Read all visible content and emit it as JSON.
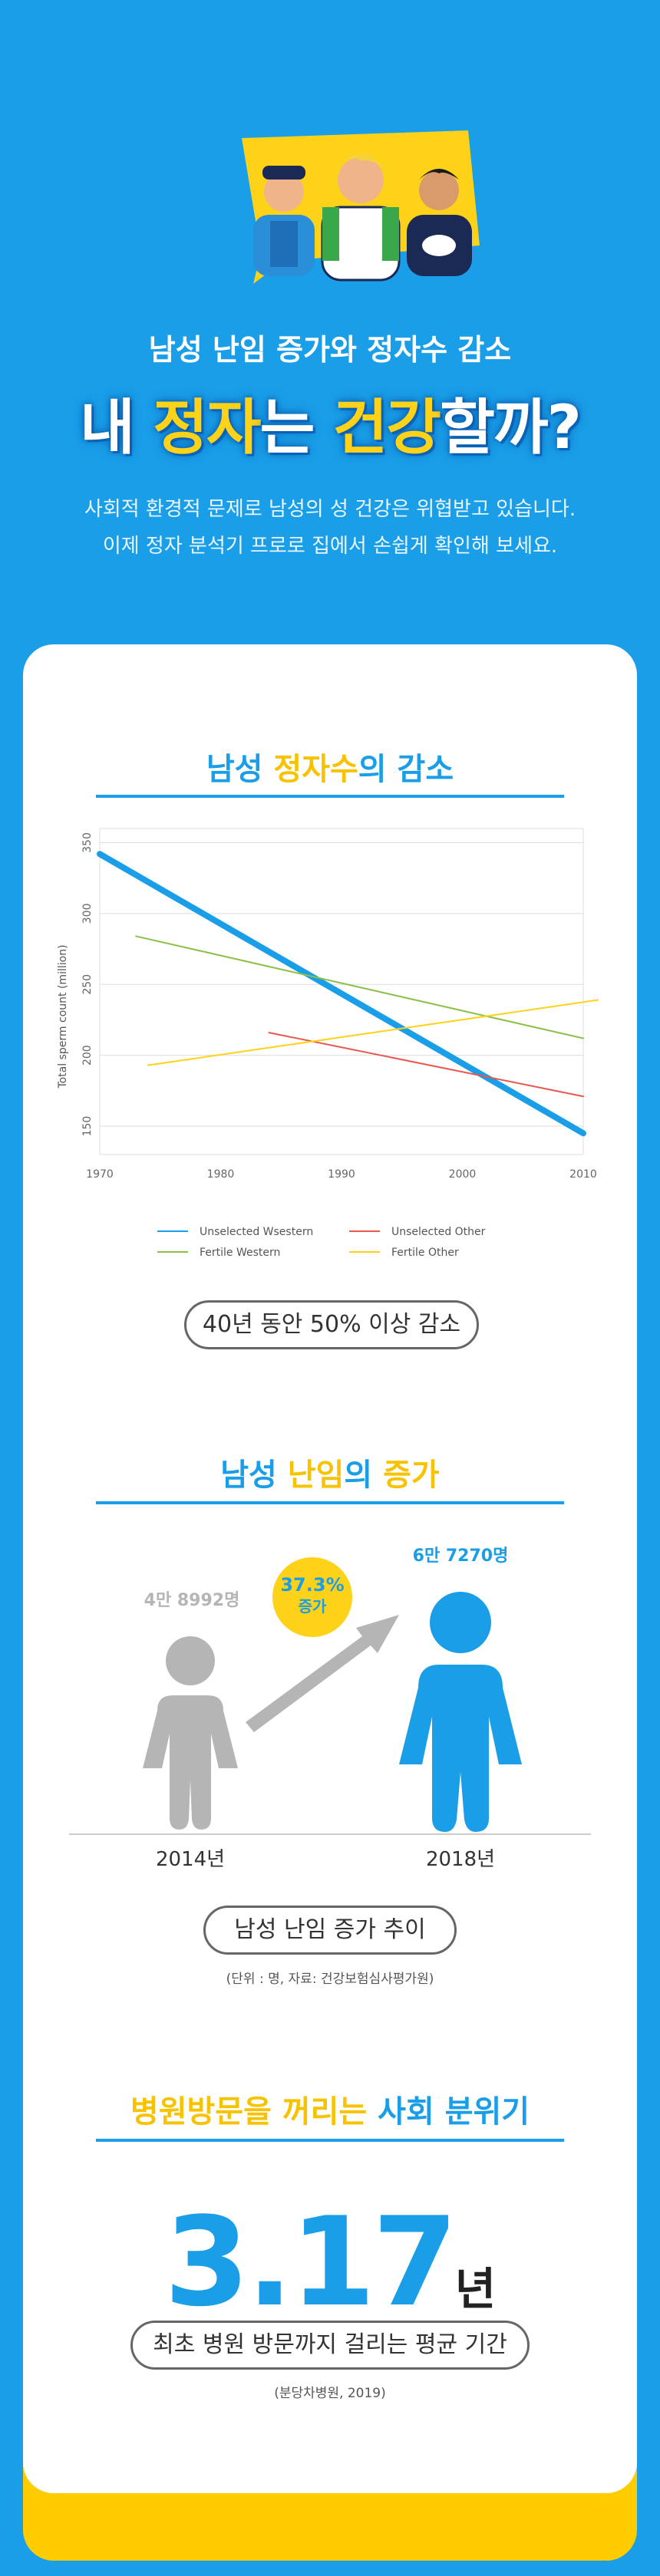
{
  "hero": {
    "subtitle": "남성 난임 증가와 정자수 감소",
    "title_a": "내 ",
    "title_b": "정자",
    "title_c": "는 ",
    "title_d": "건강",
    "title_e": "할까?",
    "desc_line1": "사회적 환경적 문제로 남성의 성 건강은 위협받고 있습니다.",
    "desc_line2": "이제 정자 분석기 프로로 집에서 손쉽게 확인해 보세요."
  },
  "section1": {
    "title_a": "남성 ",
    "title_b": "정자수",
    "title_c": "의 감소",
    "pill": "40년 동안 50% 이상 감소"
  },
  "chart_data": {
    "type": "line",
    "ylabel": "Total sperm count (million)",
    "xlim": [
      1970,
      2010
    ],
    "ylim": [
      130,
      360
    ],
    "xticks": [
      1970,
      1980,
      1990,
      2000,
      2010
    ],
    "yticks": [
      150,
      200,
      250,
      300,
      350
    ],
    "grid": true,
    "legend_position": "bottom",
    "series": [
      {
        "name": "Unselected Wsestern",
        "color": "#1a9ee8",
        "width": 8,
        "x": [
          1970,
          2010
        ],
        "y": [
          342,
          145
        ]
      },
      {
        "name": "Unselected Other",
        "color": "#e8574f",
        "width": 2,
        "x": [
          1984,
          2010
        ],
        "y": [
          216,
          171
        ]
      },
      {
        "name": "Fertile Western",
        "color": "#8dc04a",
        "width": 2,
        "x": [
          1973,
          2010
        ],
        "y": [
          284,
          212
        ]
      },
      {
        "name": "Fertile Other",
        "color": "#ffd21a",
        "width": 2,
        "x": [
          1974,
          2012
        ],
        "y": [
          193,
          240
        ]
      }
    ]
  },
  "section2": {
    "title_a": "남성 ",
    "title_b": "난임",
    "title_c": "의 ",
    "title_d": "증가",
    "count_2014": "4만 8992명",
    "count_2018": "6만 7270명",
    "growth_pct": "37.3%",
    "growth_label": "증가",
    "year_2014": "2014년",
    "year_2018": "2018년",
    "pill": "남성 난임 증가 추이",
    "note": "(단위 : 명, 자료: 건강보험심사평가원)"
  },
  "section3": {
    "title_a": "병원방문을 꺼리는 ",
    "title_b": "사회 분위기",
    "number": "3.17",
    "unit": "년",
    "pill": "최초 병원 방문까지 걸리는 평균 기간",
    "note": "(분당차병원, 2019)"
  },
  "colors": {
    "background": "#1a9ee8",
    "accent_yellow": "#ffd21a",
    "card": "#ffffff",
    "gray_person": "#b5b5b5",
    "blue_person": "#1a9ee8"
  }
}
